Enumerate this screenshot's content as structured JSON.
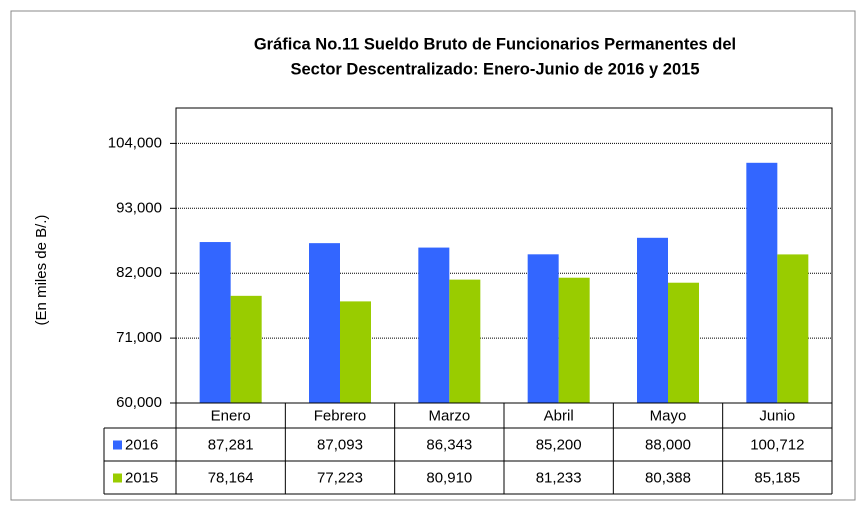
{
  "chart_data": {
    "type": "bar",
    "title": [
      "Gráfica No.11 Sueldo Bruto de Funcionarios Permanentes del",
      "Sector Descentralizado: Enero-Junio de 2016 y 2015"
    ],
    "y_label": "(En miles de B/.)",
    "categories": [
      "Enero",
      "Febrero",
      "Marzo",
      "Abril",
      "Mayo",
      "Junio"
    ],
    "series": [
      {
        "name": "2016",
        "color": "#3366ff",
        "values": [
          87281,
          87093,
          86343,
          85200,
          88000,
          100712
        ],
        "value_labels": [
          "87,281",
          "87,093",
          "86,343",
          "85,200",
          "88,000",
          "100,712"
        ]
      },
      {
        "name": "2015",
        "color": "#99cc00",
        "values": [
          78164,
          77223,
          80910,
          81233,
          80388,
          85185
        ],
        "value_labels": [
          "78,164",
          "77,223",
          "80,910",
          "81,233",
          "80,388",
          "85,185"
        ]
      }
    ],
    "ylim": [
      60000,
      110000
    ],
    "yticks": [
      {
        "value": 60000,
        "label": "60,000"
      },
      {
        "value": 71000,
        "label": "71,000"
      },
      {
        "value": 82000,
        "label": "82,000"
      },
      {
        "value": 93000,
        "label": "93,000"
      },
      {
        "value": 104000,
        "label": "104,000"
      }
    ],
    "grid": true
  }
}
